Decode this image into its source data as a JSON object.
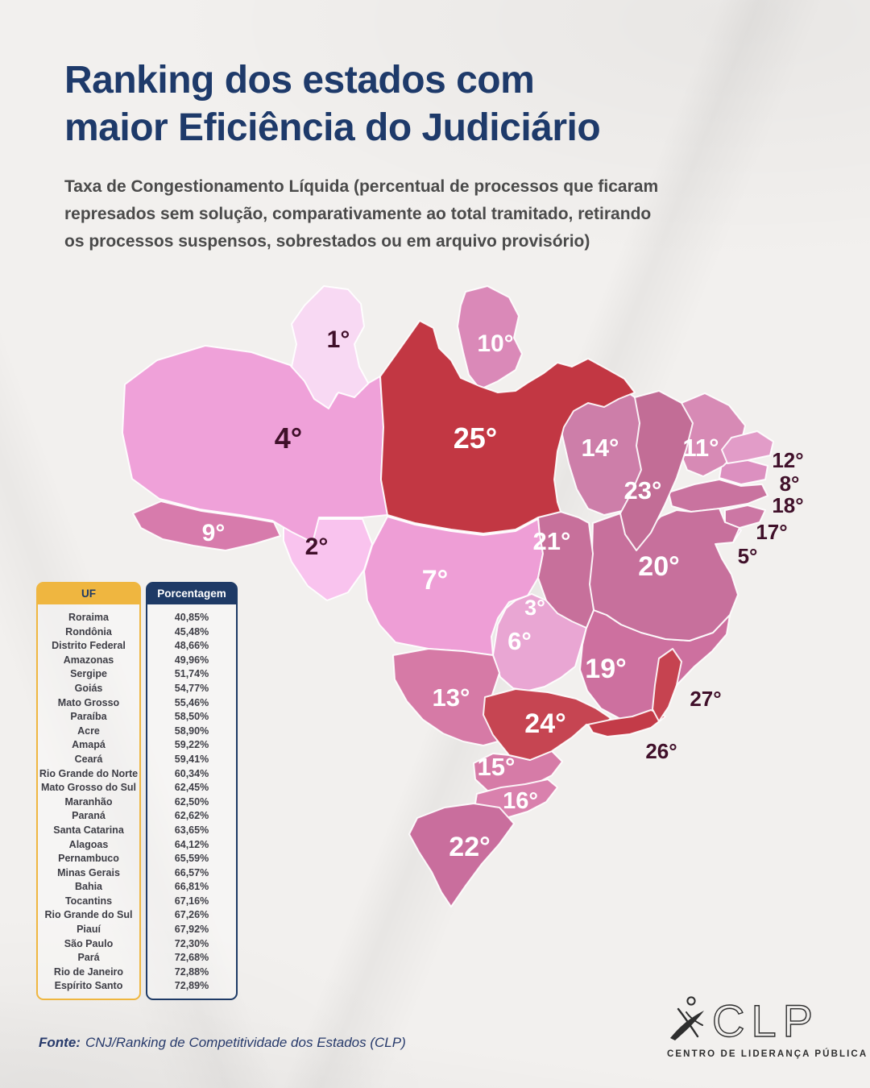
{
  "header": {
    "title_line1": "Ranking dos estados com",
    "title_line2": "maior Eficiência do Judiciário",
    "subtitle_lines": [
      "Taxa de Congestionamento Líquida (percentual de processos que ficaram",
      "represados sem solução, comparativamente ao total tramitado, retirando",
      "os processos suspensos, sobrestados ou em arquivo provisório)"
    ]
  },
  "table": {
    "col1_header": "UF",
    "col2_header": "Porcentagem",
    "rows": [
      {
        "uf": "Roraima",
        "pct": "40,85%"
      },
      {
        "uf": "Rondônia",
        "pct": "45,48%"
      },
      {
        "uf": "Distrito Federal",
        "pct": "48,66%"
      },
      {
        "uf": "Amazonas",
        "pct": "49,96%"
      },
      {
        "uf": "Sergipe",
        "pct": "51,74%"
      },
      {
        "uf": "Goiás",
        "pct": "54,77%"
      },
      {
        "uf": "Mato Grosso",
        "pct": "55,46%"
      },
      {
        "uf": "Paraíba",
        "pct": "58,50%"
      },
      {
        "uf": "Acre",
        "pct": "58,90%"
      },
      {
        "uf": "Amapá",
        "pct": "59,22%"
      },
      {
        "uf": "Ceará",
        "pct": "59,41%"
      },
      {
        "uf": "Rio Grande do Norte",
        "pct": "60,34%"
      },
      {
        "uf": "Mato Grosso do Sul",
        "pct": "62,45%"
      },
      {
        "uf": "Maranhão",
        "pct": "62,50%"
      },
      {
        "uf": "Paraná",
        "pct": "62,62%"
      },
      {
        "uf": "Santa Catarina",
        "pct": "63,65%"
      },
      {
        "uf": "Alagoas",
        "pct": "64,12%"
      },
      {
        "uf": "Pernambuco",
        "pct": "65,59%"
      },
      {
        "uf": "Minas Gerais",
        "pct": "66,57%"
      },
      {
        "uf": "Bahia",
        "pct": "66,81%"
      },
      {
        "uf": "Tocantins",
        "pct": "67,16%"
      },
      {
        "uf": "Rio Grande do Sul",
        "pct": "67,26%"
      },
      {
        "uf": "Piauí",
        "pct": "67,92%"
      },
      {
        "uf": "São Paulo",
        "pct": "72,30%"
      },
      {
        "uf": "Pará",
        "pct": "72,68%"
      },
      {
        "uf": "Rio de Janeiro",
        "pct": "72,88%"
      },
      {
        "uf": "Espírito Santo",
        "pct": "72,89%"
      }
    ]
  },
  "map": {
    "states": [
      {
        "id": "RR",
        "name": "Roraima",
        "label": "1°",
        "fill": "#f8d9f3",
        "label_color": "dark",
        "label_outside": false
      },
      {
        "id": "RO",
        "name": "Rondônia",
        "label": "2°",
        "fill": "#f9c3ee",
        "label_color": "dark",
        "label_outside": false
      },
      {
        "id": "DF",
        "name": "Distrito Federal",
        "label": "3°",
        "fill": "#f3bce6",
        "label_color": "light",
        "label_outside": false
      },
      {
        "id": "AM",
        "name": "Amazonas",
        "label": "4°",
        "fill": "#efa1d9",
        "label_color": "dark",
        "label_outside": false
      },
      {
        "id": "SE",
        "name": "Sergipe",
        "label": "5°",
        "fill": "#f0abdf",
        "label_color": "dark",
        "label_outside": true
      },
      {
        "id": "GO",
        "name": "Goiás",
        "label": "6°",
        "fill": "#e9a6d3",
        "label_color": "light",
        "label_outside": false
      },
      {
        "id": "MT",
        "name": "Mato Grosso",
        "label": "7°",
        "fill": "#ee9ed6",
        "label_color": "light",
        "label_outside": false
      },
      {
        "id": "PB",
        "name": "Paraíba",
        "label": "8°",
        "fill": "#dc90c0",
        "label_color": "dark",
        "label_outside": true
      },
      {
        "id": "AC",
        "name": "Acre",
        "label": "9°",
        "fill": "#d77bac",
        "label_color": "light",
        "label_outside": false
      },
      {
        "id": "AP",
        "name": "Amapá",
        "label": "10°",
        "fill": "#da89b8",
        "label_color": "light",
        "label_outside": false
      },
      {
        "id": "CE",
        "name": "Ceará",
        "label": "11°",
        "fill": "#d78ab5",
        "label_color": "light",
        "label_outside": false
      },
      {
        "id": "RN",
        "name": "Rio Grande do Norte",
        "label": "12°",
        "fill": "#e29cc8",
        "label_color": "dark",
        "label_outside": true
      },
      {
        "id": "MS",
        "name": "Mato Grosso do Sul",
        "label": "13°",
        "fill": "#d67aa6",
        "label_color": "light",
        "label_outside": false
      },
      {
        "id": "MA",
        "name": "Maranhão",
        "label": "14°",
        "fill": "#cd7ea9",
        "label_color": "light",
        "label_outside": false
      },
      {
        "id": "PR",
        "name": "Paraná",
        "label": "15°",
        "fill": "#d67ba7",
        "label_color": "light",
        "label_outside": false
      },
      {
        "id": "SC",
        "name": "Santa Catarina",
        "label": "16°",
        "fill": "#d981ad",
        "label_color": "light",
        "label_outside": false
      },
      {
        "id": "AL",
        "name": "Alagoas",
        "label": "17°",
        "fill": "#cc77a4",
        "label_color": "dark",
        "label_outside": true
      },
      {
        "id": "PE",
        "name": "Pernambuco",
        "label": "18°",
        "fill": "#c9739f",
        "label_color": "dark",
        "label_outside": true
      },
      {
        "id": "MG",
        "name": "Minas Gerais",
        "label": "19°",
        "fill": "#cd709f",
        "label_color": "light",
        "label_outside": false
      },
      {
        "id": "BA",
        "name": "Bahia",
        "label": "20°",
        "fill": "#c7709c",
        "label_color": "light",
        "label_outside": false
      },
      {
        "id": "TO",
        "name": "Tocantins",
        "label": "21°",
        "fill": "#c7709b",
        "label_color": "light",
        "label_outside": false
      },
      {
        "id": "RS",
        "name": "Rio Grande do Sul",
        "label": "22°",
        "fill": "#c96e9d",
        "label_color": "light",
        "label_outside": false
      },
      {
        "id": "PI",
        "name": "Piauí",
        "label": "23°",
        "fill": "#c26d96",
        "label_color": "light",
        "label_outside": false
      },
      {
        "id": "SP",
        "name": "São Paulo",
        "label": "24°",
        "fill": "#c64552",
        "label_color": "light",
        "label_outside": false
      },
      {
        "id": "PA",
        "name": "Pará",
        "label": "25°",
        "fill": "#c23743",
        "label_color": "light",
        "label_outside": false
      },
      {
        "id": "RJ",
        "name": "Rio de Janeiro",
        "label": "26°",
        "fill": "#c33b48",
        "label_color": "dark",
        "label_outside": true
      },
      {
        "id": "ES",
        "name": "Espírito Santo",
        "label": "27°",
        "fill": "#c64350",
        "label_color": "dark",
        "label_outside": true
      }
    ]
  },
  "footer": {
    "source_label": "Fonte:",
    "source_text": "CNJ/Ranking de Competitividade dos Estados (CLP)"
  },
  "logo": {
    "acronym": "CLP",
    "tagline": "CENTRO DE LIDERANÇA PÚBLICA"
  },
  "colors": {
    "title_navy": "#1e3a6a",
    "subtitle_gray": "#4a4a4a",
    "table_yellow": "#efb640",
    "table_navy": "#1e3a66",
    "map_label_dark": "#40102a",
    "map_label_light": "#ffffff",
    "background_paper": "#f2f0ee"
  }
}
